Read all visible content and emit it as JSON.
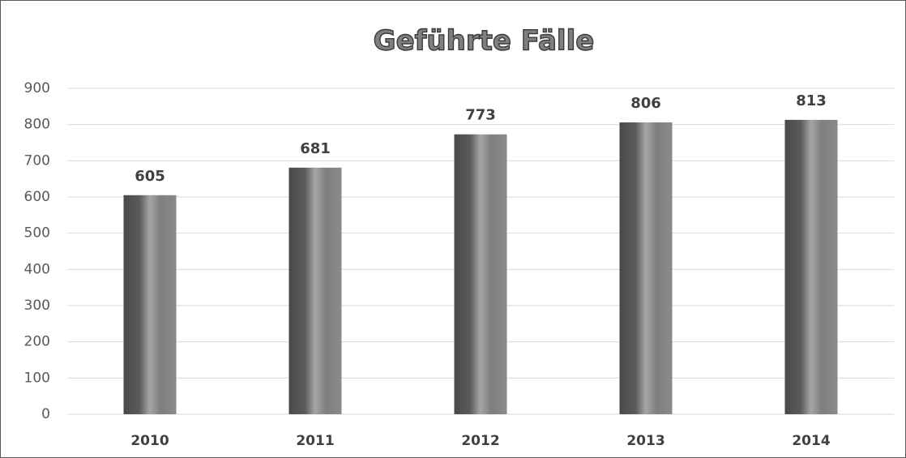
{
  "chart_data": {
    "type": "bar",
    "title": "Geführte Fälle",
    "categories": [
      "2010",
      "2011",
      "2012",
      "2013",
      "2014"
    ],
    "values": [
      605,
      681,
      773,
      806,
      813
    ],
    "color": "#7f7f7f",
    "ylim": [
      0,
      900
    ],
    "yticks": [
      0,
      100,
      200,
      300,
      400,
      500,
      600,
      700,
      800,
      900
    ],
    "grid": true
  }
}
